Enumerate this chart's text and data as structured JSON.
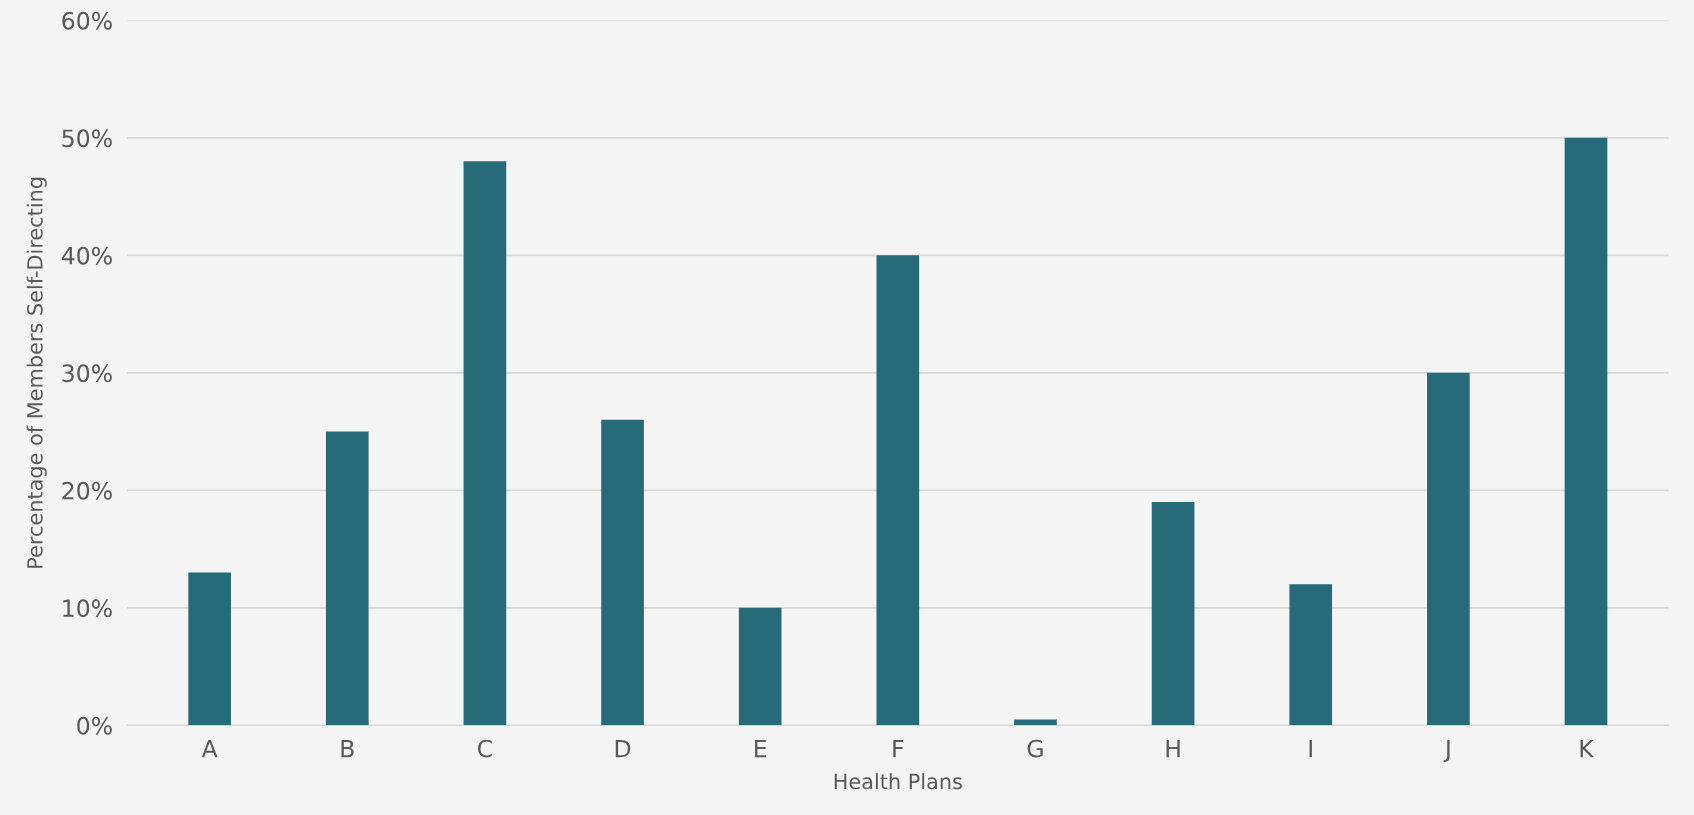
{
  "chart_data": {
    "type": "bar",
    "xlabel": "Health Plans",
    "ylabel": "Percentage of Members Self-Directing",
    "categories": [
      "A",
      "B",
      "C",
      "D",
      "E",
      "F",
      "G",
      "H",
      "I",
      "J",
      "K"
    ],
    "values": [
      13,
      25,
      48,
      26,
      10,
      40,
      0.5,
      19,
      12,
      30,
      50
    ],
    "color": "#276b79",
    "ylim": [
      0,
      60
    ],
    "yticks": [
      {
        "value": 0,
        "label": "0%"
      },
      {
        "value": 10,
        "label": "10%"
      },
      {
        "value": 20,
        "label": "20%"
      },
      {
        "value": 30,
        "label": "30%"
      },
      {
        "value": 40,
        "label": "40%"
      },
      {
        "value": 50,
        "label": "50%"
      },
      {
        "value": 60,
        "label": "60%"
      }
    ],
    "grid": "y"
  }
}
